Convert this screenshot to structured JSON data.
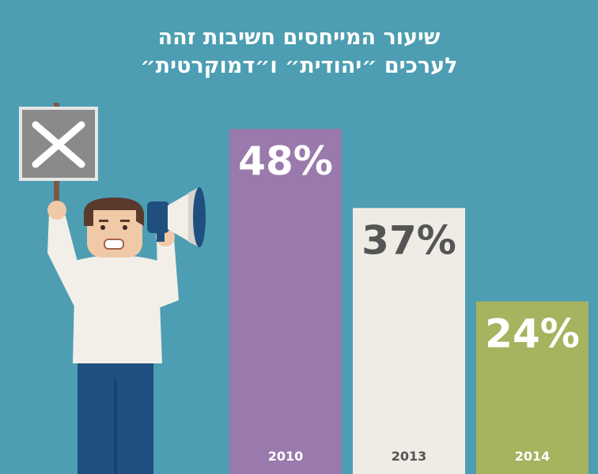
{
  "title_lines": [
    "שיעור המייחסים חשיבות זהה",
    "לערכים ״יהודית״ ו״דמוקרטית״"
  ],
  "colors": {
    "background": "#4d9eb2",
    "bars": [
      "#9a7aac",
      "#efece6",
      "#a7b35f"
    ],
    "value_labels": [
      "#ffffff",
      "#555555",
      "#ffffff"
    ],
    "year_labels": [
      "#ffffff",
      "#555555",
      "#ffffff"
    ]
  },
  "chart_data": {
    "type": "bar",
    "title": "שיעור המייחסים חשיבות זהה לערכים ״יהודית״ ו״דמוקרטית״",
    "categories": [
      "2010",
      "2013",
      "2014"
    ],
    "values": [
      48,
      37,
      24
    ],
    "value_labels": [
      "48%",
      "37%",
      "24%"
    ],
    "unit": "%",
    "xlabel": "",
    "ylabel": "",
    "ylim": [
      0,
      100
    ],
    "grid": false,
    "legend": "none"
  },
  "illustration": {
    "icons": [
      "protest-sign-x-icon",
      "megaphone-icon",
      "protester-figure"
    ]
  }
}
